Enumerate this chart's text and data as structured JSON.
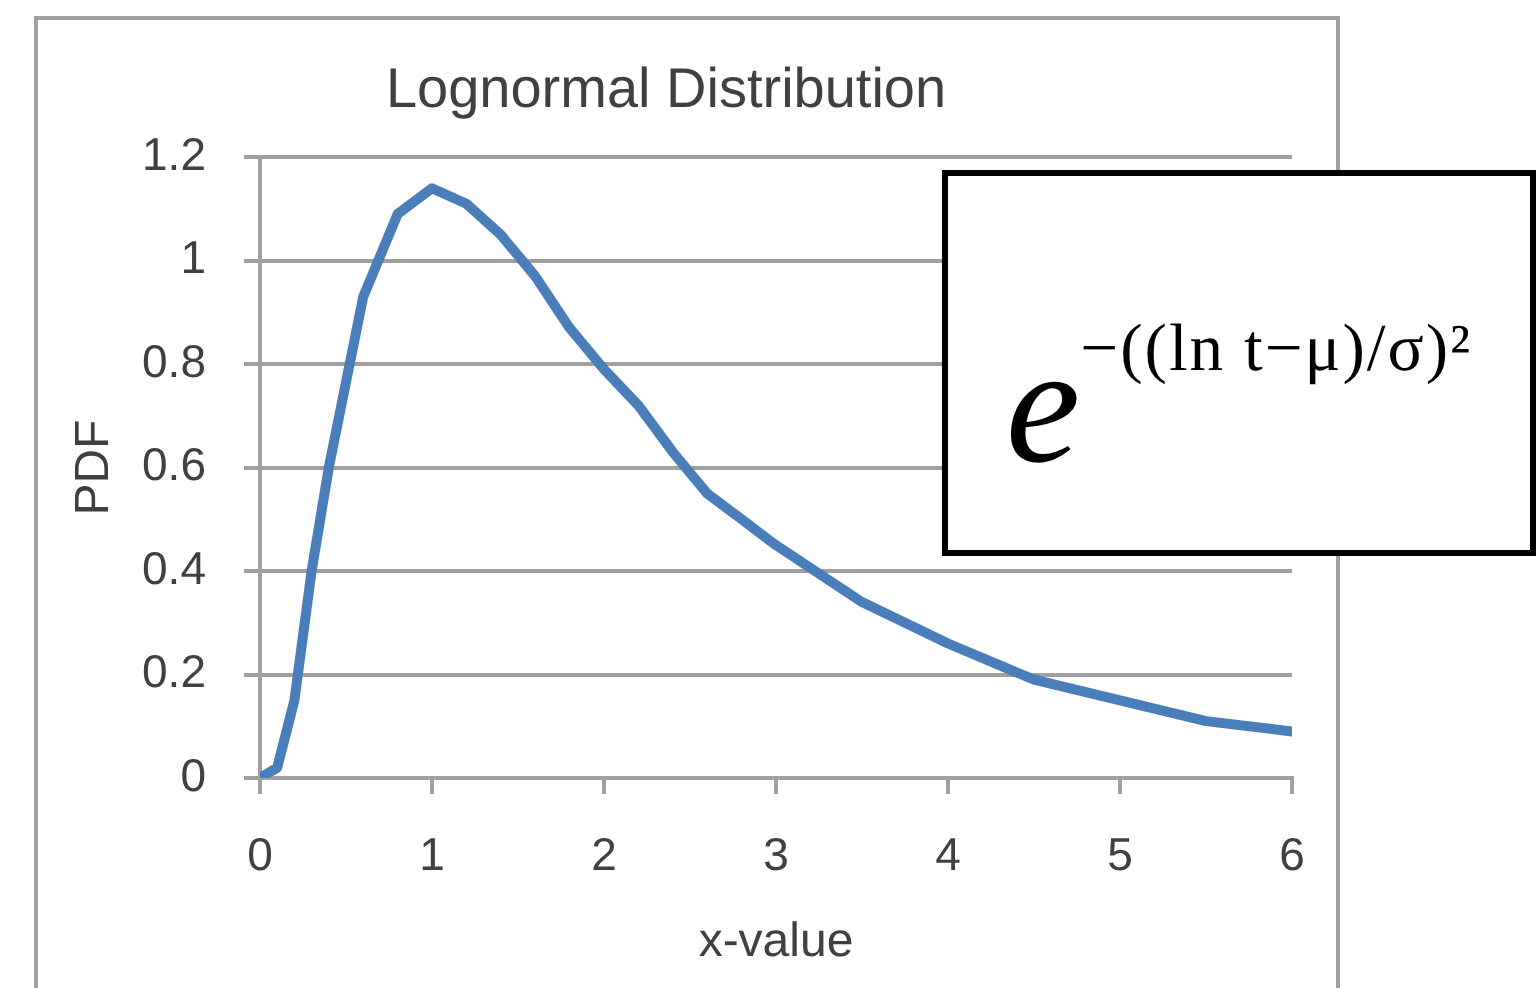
{
  "chart_data": {
    "type": "line",
    "title": "Lognormal Distribution",
    "xlabel": "x-value",
    "ylabel": "PDF",
    "x": [
      0,
      0.1,
      0.2,
      0.3,
      0.4,
      0.6,
      0.8,
      1.0,
      1.2,
      1.4,
      1.6,
      1.8,
      2.0,
      2.2,
      2.4,
      2.6,
      2.8,
      3.0,
      3.5,
      4.0,
      4.5,
      5.0,
      5.5,
      6.0
    ],
    "series": [
      {
        "color": "#4a7ebb",
        "values": [
          0,
          0.02,
          0.15,
          0.4,
          0.6,
          0.93,
          1.09,
          1.14,
          1.11,
          1.05,
          0.97,
          0.87,
          0.79,
          0.72,
          0.63,
          0.55,
          0.5,
          0.45,
          0.34,
          0.26,
          0.19,
          0.15,
          0.11,
          0.09
        ]
      }
    ],
    "xlim": [
      0,
      6
    ],
    "xticks": [
      0,
      1,
      2,
      3,
      4,
      5,
      6
    ],
    "ylim": [
      0,
      1.2
    ],
    "yticks": [
      0,
      0.2,
      0.4,
      0.6,
      0.8,
      1,
      1.2
    ],
    "grid": "y",
    "marker": "none",
    "line_style": "solid",
    "annotations": [
      "e$^{−((ln t−μ)/σ)²}$"
    ]
  }
}
